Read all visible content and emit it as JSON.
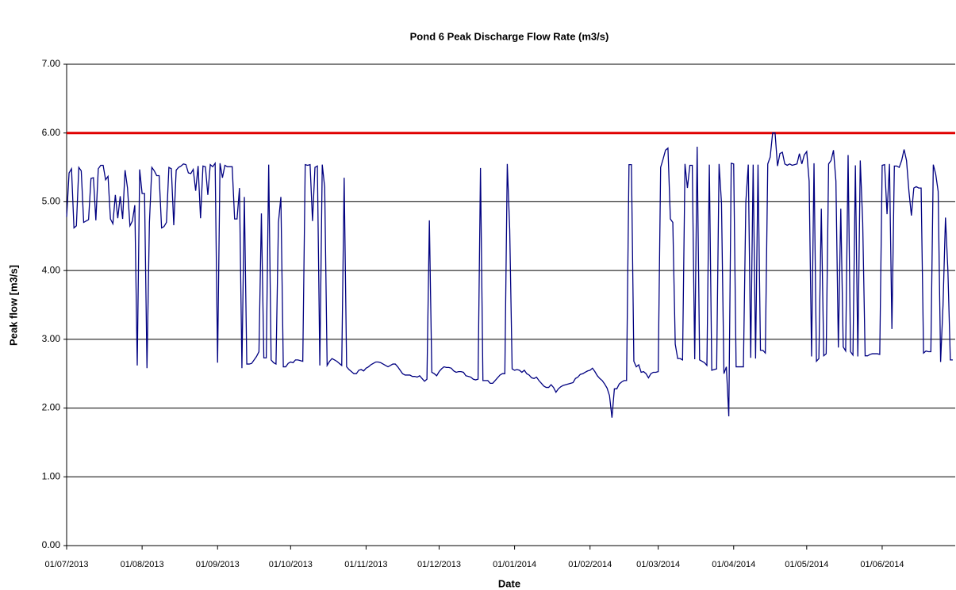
{
  "chart_data": {
    "type": "line",
    "title": "Pond 6 Peak Discharge Flow Rate (m3/s)",
    "x_label": "Date",
    "y_label": "Peak flow [m3/s]",
    "categories": [
      "01/07/2013",
      null,
      null,
      null,
      null,
      null,
      null,
      null,
      null,
      null,
      null,
      null,
      null,
      null,
      null,
      null,
      null,
      null,
      null,
      null,
      null,
      null,
      null,
      null,
      null,
      null,
      null,
      null,
      null,
      null,
      null,
      "01/08/2013",
      null,
      null,
      null,
      null,
      null,
      null,
      null,
      null,
      null,
      null,
      null,
      null,
      null,
      null,
      null,
      null,
      null,
      null,
      null,
      null,
      null,
      null,
      null,
      null,
      null,
      null,
      null,
      null,
      null,
      null,
      "01/09/2013",
      null,
      null,
      null,
      null,
      null,
      null,
      null,
      null,
      null,
      null,
      null,
      null,
      null,
      null,
      null,
      null,
      null,
      null,
      null,
      null,
      null,
      null,
      null,
      null,
      null,
      null,
      null,
      null,
      null,
      "01/10/2013",
      null,
      null,
      null,
      null,
      null,
      null,
      null,
      null,
      null,
      null,
      null,
      null,
      null,
      null,
      null,
      null,
      null,
      null,
      null,
      null,
      null,
      null,
      null,
      null,
      null,
      null,
      null,
      null,
      null,
      null,
      "01/11/2013",
      null,
      null,
      null,
      null,
      null,
      null,
      null,
      null,
      null,
      null,
      null,
      null,
      null,
      null,
      null,
      null,
      null,
      null,
      null,
      null,
      null,
      null,
      null,
      null,
      null,
      null,
      null,
      null,
      null,
      "01/12/2013",
      null,
      null,
      null,
      null,
      null,
      null,
      null,
      null,
      null,
      null,
      null,
      null,
      null,
      null,
      null,
      null,
      null,
      null,
      null,
      null,
      null,
      null,
      null,
      null,
      null,
      null,
      null,
      null,
      null,
      null,
      "01/01/2014",
      null,
      null,
      null,
      null,
      null,
      null,
      null,
      null,
      null,
      null,
      null,
      null,
      null,
      null,
      null,
      null,
      null,
      null,
      null,
      null,
      null,
      null,
      null,
      null,
      null,
      null,
      null,
      null,
      null,
      null,
      "01/02/2014",
      null,
      null,
      null,
      null,
      null,
      null,
      null,
      null,
      null,
      null,
      null,
      null,
      null,
      null,
      null,
      null,
      null,
      null,
      null,
      null,
      null,
      null,
      null,
      null,
      null,
      null,
      null,
      "01/03/2014",
      null,
      null,
      null,
      null,
      null,
      null,
      null,
      null,
      null,
      null,
      null,
      null,
      null,
      null,
      null,
      null,
      null,
      null,
      null,
      null,
      null,
      null,
      null,
      null,
      null,
      null,
      null,
      null,
      null,
      null,
      "01/04/2014",
      null,
      null,
      null,
      null,
      null,
      null,
      null,
      null,
      null,
      null,
      null,
      null,
      null,
      null,
      null,
      null,
      null,
      null,
      null,
      null,
      null,
      null,
      null,
      null,
      null,
      null,
      null,
      null,
      null,
      "01/05/2014",
      null,
      null,
      null,
      null,
      null,
      null,
      null,
      null,
      null,
      null,
      null,
      null,
      null,
      null,
      null,
      null,
      null,
      null,
      null,
      null,
      null,
      null,
      null,
      null,
      null,
      null,
      null,
      null,
      null,
      null,
      "01/06/2014",
      null,
      null,
      null,
      null,
      null,
      null,
      null,
      null,
      null,
      null,
      null,
      null,
      null,
      null,
      null,
      null,
      null,
      null,
      null,
      null,
      null,
      null,
      null,
      null,
      null,
      null,
      null,
      null,
      null
    ],
    "series": [
      {
        "color": "#000080",
        "values": [
          4.78,
          5.42,
          5.48,
          4.62,
          4.65,
          5.5,
          5.45,
          4.7,
          4.72,
          4.74,
          5.34,
          5.35,
          4.73,
          5.48,
          5.53,
          5.53,
          5.32,
          5.37,
          4.75,
          4.68,
          5.1,
          4.76,
          5.08,
          4.75,
          5.46,
          5.2,
          4.65,
          4.72,
          4.95,
          2.62,
          5.47,
          5.12,
          5.12,
          2.58,
          4.7,
          5.5,
          5.45,
          5.38,
          5.38,
          4.62,
          4.64,
          4.7,
          5.5,
          5.48,
          4.66,
          5.46,
          5.5,
          5.52,
          5.55,
          5.54,
          5.42,
          5.41,
          5.47,
          5.16,
          5.52,
          4.76,
          5.52,
          5.51,
          5.1,
          5.54,
          5.51,
          5.56,
          2.66,
          5.56,
          5.35,
          5.53,
          5.51,
          5.51,
          5.51,
          4.75,
          4.75,
          5.2,
          2.58,
          5.07,
          2.64,
          2.64,
          2.65,
          2.7,
          2.75,
          2.82,
          4.83,
          2.73,
          2.73,
          5.54,
          2.7,
          2.66,
          2.64,
          4.7,
          5.07,
          2.6,
          2.6,
          2.65,
          2.67,
          2.66,
          2.7,
          2.7,
          2.69,
          2.68,
          5.54,
          5.53,
          5.54,
          4.72,
          5.5,
          5.52,
          2.62,
          5.54,
          5.21,
          2.62,
          2.68,
          2.72,
          2.7,
          2.68,
          2.65,
          2.62,
          5.35,
          2.6,
          2.56,
          2.53,
          2.5,
          2.5,
          2.55,
          2.56,
          2.54,
          2.58,
          2.6,
          2.63,
          2.65,
          2.67,
          2.67,
          2.66,
          2.64,
          2.62,
          2.6,
          2.62,
          2.64,
          2.64,
          2.6,
          2.55,
          2.5,
          2.48,
          2.48,
          2.48,
          2.46,
          2.46,
          2.45,
          2.47,
          2.43,
          2.39,
          2.42,
          4.73,
          2.52,
          2.5,
          2.47,
          2.53,
          2.57,
          2.6,
          2.59,
          2.59,
          2.58,
          2.54,
          2.52,
          2.53,
          2.53,
          2.52,
          2.47,
          2.46,
          2.45,
          2.42,
          2.41,
          2.42,
          5.49,
          2.4,
          2.4,
          2.4,
          2.36,
          2.36,
          2.4,
          2.44,
          2.48,
          2.5,
          2.5,
          5.55,
          4.6,
          2.57,
          2.55,
          2.56,
          2.55,
          2.52,
          2.55,
          2.5,
          2.48,
          2.44,
          2.43,
          2.45,
          2.4,
          2.36,
          2.32,
          2.3,
          2.3,
          2.34,
          2.3,
          2.23,
          2.28,
          2.31,
          2.33,
          2.34,
          2.35,
          2.36,
          2.37,
          2.43,
          2.45,
          2.49,
          2.5,
          2.52,
          2.54,
          2.55,
          2.58,
          2.53,
          2.47,
          2.43,
          2.4,
          2.35,
          2.29,
          2.18,
          1.86,
          2.28,
          2.28,
          2.35,
          2.38,
          2.4,
          2.4,
          5.54,
          5.54,
          2.68,
          2.6,
          2.63,
          2.52,
          2.53,
          2.5,
          2.44,
          2.5,
          2.52,
          2.52,
          2.53,
          5.5,
          5.62,
          5.75,
          5.78,
          4.75,
          4.7,
          2.93,
          2.72,
          2.72,
          2.7,
          5.55,
          5.2,
          5.53,
          5.53,
          2.71,
          5.8,
          2.7,
          2.68,
          2.66,
          2.62,
          5.54,
          2.55,
          2.56,
          2.57,
          5.55,
          4.98,
          2.5,
          2.6,
          1.88,
          5.56,
          5.55,
          2.6,
          2.6,
          2.6,
          2.6,
          5.0,
          5.54,
          2.73,
          5.54,
          2.72,
          5.54,
          2.84,
          2.84,
          2.8,
          5.55,
          5.65,
          6.0,
          6.0,
          5.52,
          5.7,
          5.72,
          5.55,
          5.53,
          5.55,
          5.53,
          5.54,
          5.55,
          5.7,
          5.55,
          5.68,
          5.73,
          5.3,
          2.75,
          5.56,
          2.68,
          2.72,
          4.9,
          2.76,
          2.79,
          5.55,
          5.6,
          5.75,
          5.3,
          2.88,
          4.9,
          2.89,
          2.83,
          5.68,
          2.82,
          2.77,
          5.53,
          2.75,
          5.6,
          4.7,
          2.76,
          2.76,
          2.78,
          2.79,
          2.79,
          2.79,
          2.78,
          5.53,
          5.54,
          4.82,
          5.55,
          3.15,
          5.52,
          5.52,
          5.5,
          5.6,
          5.76,
          5.6,
          5.15,
          4.8,
          5.2,
          5.22,
          5.2,
          5.2,
          2.8,
          2.83,
          2.82,
          2.82,
          5.54,
          5.4,
          5.15,
          2.67,
          3.5,
          4.77,
          4.0,
          2.7,
          2.7
        ]
      }
    ],
    "threshold": {
      "value": 6,
      "color": "#e00000"
    },
    "ylim": [
      0,
      7
    ],
    "yticks": [
      {
        "value": 0,
        "label": "0.00"
      },
      {
        "value": 1,
        "label": "1.00"
      },
      {
        "value": 2,
        "label": "2.00"
      },
      {
        "value": 3,
        "label": "3.00"
      },
      {
        "value": 4,
        "label": "4.00"
      },
      {
        "value": 5,
        "label": "5.00"
      },
      {
        "value": 6,
        "label": "6.00"
      },
      {
        "value": 7,
        "label": "7.00"
      }
    ],
    "grid": true
  }
}
